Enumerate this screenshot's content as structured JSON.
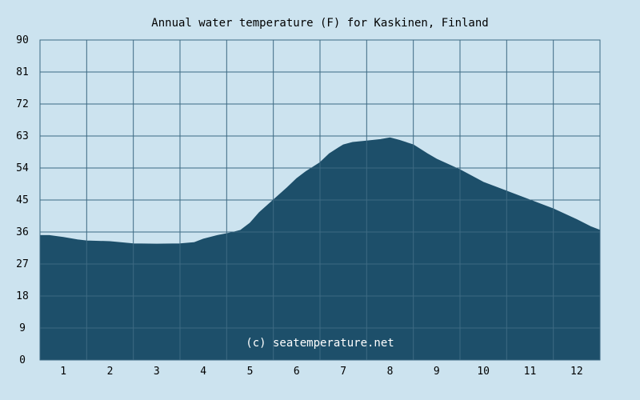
{
  "chart_data": {
    "type": "area",
    "title": "Annual water temperature (F) for Kaskinen, Finland",
    "watermark": "(c) seatemperature.net",
    "xlabel": "",
    "ylabel": "",
    "x_ticks": [
      "1",
      "2",
      "3",
      "4",
      "5",
      "6",
      "7",
      "8",
      "9",
      "10",
      "11",
      "12"
    ],
    "y_ticks": [
      "0",
      "9",
      "18",
      "27",
      "36",
      "45",
      "54",
      "63",
      "72",
      "81",
      "90"
    ],
    "xlim": [
      0.5,
      12.5
    ],
    "ylim": [
      0,
      90
    ],
    "grid": true,
    "colors": {
      "background": "#cce3ef",
      "area_fill": "#1d4f6a",
      "grid": "#3d6a83",
      "plot_border": "#3d6a83"
    },
    "series": [
      {
        "x": [
          0.5,
          0.7,
          1.0,
          1.3,
          1.5,
          2.0,
          2.5,
          3.0,
          3.5,
          3.8,
          4.0,
          4.3,
          4.6,
          4.8,
          5.0,
          5.2,
          5.5,
          5.8,
          6.0,
          6.2,
          6.5,
          6.7,
          6.9,
          7.0,
          7.2,
          7.5,
          7.8,
          8.0,
          8.2,
          8.5,
          8.8,
          9.0,
          9.5,
          10.0,
          10.5,
          11.0,
          11.5,
          12.0,
          12.3,
          12.5
        ],
        "values": [
          35,
          35,
          34.5,
          33.8,
          33.5,
          33.3,
          32.7,
          32.6,
          32.7,
          33,
          34,
          35,
          35.8,
          36.5,
          38.5,
          41.5,
          45,
          48.5,
          51,
          53,
          55.5,
          58,
          59.7,
          60.5,
          61.2,
          61.6,
          62,
          62.5,
          61.8,
          60.5,
          58,
          56.5,
          53.5,
          50,
          47.5,
          45,
          42.5,
          39.5,
          37.5,
          36.5
        ]
      }
    ]
  }
}
